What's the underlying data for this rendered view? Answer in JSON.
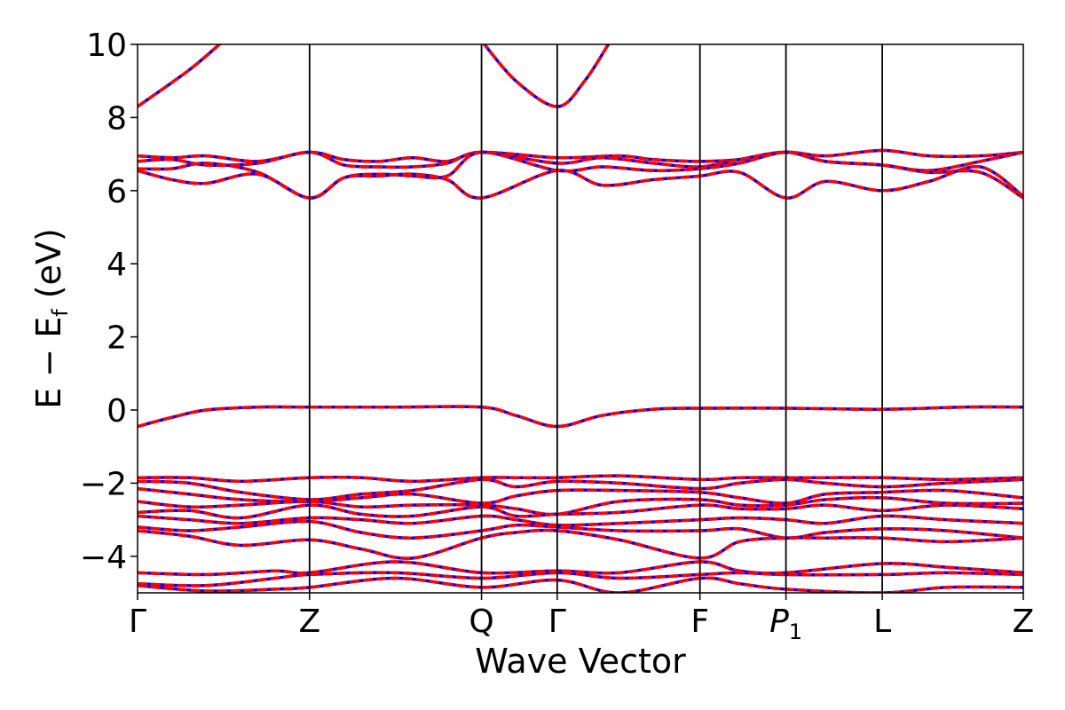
{
  "chart_data": {
    "type": "line",
    "title": "",
    "xlabel": "Wave Vector",
    "ylabel": "E − E_f (eV)",
    "ylabel_parts": {
      "main": "E  −  E",
      "sub": "f",
      "tail": " (eV)"
    },
    "ylim": [
      -5,
      10
    ],
    "yticks": [
      -4,
      -2,
      0,
      2,
      4,
      6,
      8,
      10
    ],
    "ytick_labels": [
      "−4",
      "−2",
      "0",
      "2",
      "4",
      "6",
      "8",
      "10"
    ],
    "kpath": [
      {
        "label": "Γ",
        "pos": 0
      },
      {
        "label": "Z",
        "pos": 1
      },
      {
        "label": "Q",
        "pos": 2
      },
      {
        "label": "Γ",
        "pos": 2.44
      },
      {
        "label": "F",
        "pos": 3.27
      },
      {
        "label": "P",
        "sub": "1",
        "pos": 3.77
      },
      {
        "label": "L",
        "pos": 4.33
      },
      {
        "label": "Z",
        "pos": 5.15
      }
    ],
    "grid": false,
    "series_style": [
      {
        "role": "spin-down",
        "color": "#0000ff",
        "dash": "solid"
      },
      {
        "role": "spin-up",
        "color": "#ff0000",
        "dash": "dashed"
      }
    ],
    "bands": [
      {
        "x": [
          0,
          0.3,
          0.5
        ],
        "y": [
          8.3,
          9.3,
          10.1
        ]
      },
      {
        "x": [
          2.0,
          2.2,
          2.44,
          2.6,
          2.75
        ],
        "y": [
          10.1,
          9.0,
          8.3,
          9.0,
          10.1
        ]
      },
      {
        "x": [
          0,
          0.2,
          0.4,
          0.7,
          1.0,
          1.2,
          1.4,
          1.6,
          1.8,
          2.0,
          2.44,
          2.8,
          3.0,
          3.27,
          3.5,
          3.77,
          4.0,
          4.33,
          4.6,
          4.9,
          5.15
        ],
        "y": [
          6.95,
          6.9,
          6.95,
          6.8,
          7.05,
          6.85,
          6.8,
          6.9,
          6.8,
          7.05,
          6.9,
          6.95,
          6.85,
          6.8,
          6.85,
          7.05,
          6.95,
          7.1,
          6.95,
          6.95,
          7.05
        ]
      },
      {
        "x": [
          0,
          0.2,
          0.4,
          0.7,
          1.0,
          1.2,
          1.4,
          1.6,
          1.8,
          2.0,
          2.44,
          2.7,
          3.0,
          3.27,
          3.5,
          3.77,
          4.0,
          4.33,
          4.6,
          4.9,
          5.15
        ],
        "y": [
          6.8,
          6.85,
          6.7,
          6.75,
          7.05,
          6.7,
          6.65,
          6.65,
          6.75,
          7.05,
          6.75,
          6.9,
          6.75,
          6.65,
          6.85,
          7.05,
          6.8,
          6.7,
          6.55,
          6.8,
          7.05
        ]
      },
      {
        "x": [
          0,
          0.2,
          0.4,
          0.7,
          1.0,
          1.2,
          1.4,
          1.6,
          1.8,
          2.0,
          2.44,
          2.7,
          3.0,
          3.27,
          3.5,
          3.77,
          4.0,
          4.33,
          4.6,
          4.9,
          5.15
        ],
        "y": [
          6.6,
          6.6,
          6.75,
          6.5,
          5.8,
          6.35,
          6.45,
          6.4,
          6.4,
          7.05,
          6.55,
          6.65,
          6.55,
          6.6,
          6.75,
          7.05,
          6.8,
          6.7,
          6.5,
          6.5,
          5.8
        ]
      },
      {
        "x": [
          0,
          0.2,
          0.4,
          0.7,
          1.0,
          1.2,
          1.4,
          1.6,
          1.8,
          2.0,
          2.44,
          2.7,
          3.0,
          3.27,
          3.5,
          3.77,
          4.0,
          4.33,
          4.6,
          4.9,
          5.15
        ],
        "y": [
          6.55,
          6.3,
          6.2,
          6.45,
          5.8,
          6.35,
          6.4,
          6.45,
          6.3,
          5.8,
          6.55,
          6.15,
          6.3,
          6.4,
          6.5,
          5.8,
          6.25,
          6.0,
          6.25,
          6.65,
          5.85
        ]
      },
      {
        "x": [
          0,
          0.2,
          0.4,
          0.7,
          1.0,
          1.5,
          2.0,
          2.2,
          2.44,
          2.7,
          3.0,
          3.27,
          3.77,
          4.33,
          4.8,
          5.15
        ],
        "y": [
          -0.45,
          -0.2,
          0.0,
          0.08,
          0.08,
          0.08,
          0.08,
          -0.15,
          -0.45,
          -0.15,
          0.02,
          0.05,
          0.05,
          0.02,
          0.08,
          0.08
        ]
      },
      {
        "x": [
          0,
          0.3,
          0.6,
          1.0,
          1.3,
          1.6,
          2.0,
          2.2,
          2.44,
          2.8,
          3.27,
          3.5,
          3.77,
          4.0,
          4.33,
          4.7,
          5.15
        ],
        "y": [
          -1.85,
          -1.85,
          -1.95,
          -1.85,
          -1.85,
          -1.95,
          -1.85,
          -1.85,
          -1.85,
          -1.8,
          -1.9,
          -1.85,
          -1.85,
          -1.85,
          -1.85,
          -1.9,
          -1.85
        ]
      },
      {
        "x": [
          0,
          0.3,
          0.6,
          1.0,
          1.3,
          1.6,
          2.0,
          2.2,
          2.44,
          2.8,
          3.27,
          3.5,
          3.77,
          4.0,
          4.33,
          4.7,
          5.15
        ],
        "y": [
          -1.95,
          -2.0,
          -2.25,
          -2.45,
          -2.3,
          -2.2,
          -1.9,
          -2.1,
          -1.95,
          -2.0,
          -2.15,
          -2.0,
          -1.9,
          -2.0,
          -2.1,
          -2.0,
          -1.9
        ]
      },
      {
        "x": [
          0,
          0.3,
          0.6,
          1.0,
          1.3,
          1.6,
          2.0,
          2.2,
          2.44,
          2.8,
          3.27,
          3.5,
          3.77,
          4.0,
          4.33,
          4.7,
          5.15
        ],
        "y": [
          -2.15,
          -2.3,
          -2.45,
          -2.5,
          -2.4,
          -2.3,
          -2.55,
          -2.35,
          -2.2,
          -2.2,
          -2.25,
          -2.4,
          -2.55,
          -2.3,
          -2.25,
          -2.2,
          -2.4
        ]
      },
      {
        "x": [
          0,
          0.3,
          0.6,
          1.0,
          1.3,
          1.6,
          2.0,
          2.2,
          2.44,
          2.8,
          3.27,
          3.5,
          3.77,
          4.0,
          4.33,
          4.7,
          5.15
        ],
        "y": [
          -2.5,
          -2.65,
          -2.6,
          -2.5,
          -2.65,
          -2.6,
          -2.6,
          -2.7,
          -2.85,
          -2.5,
          -2.45,
          -2.6,
          -2.6,
          -2.45,
          -2.4,
          -2.55,
          -2.55
        ]
      },
      {
        "x": [
          0,
          0.3,
          0.6,
          1.0,
          1.3,
          1.6,
          2.0,
          2.2,
          2.44,
          2.8,
          3.27,
          3.5,
          3.77,
          4.0,
          4.33,
          4.7,
          5.15
        ],
        "y": [
          -2.8,
          -2.75,
          -2.95,
          -2.6,
          -2.85,
          -2.9,
          -2.65,
          -2.9,
          -2.85,
          -2.8,
          -2.6,
          -2.7,
          -2.7,
          -2.6,
          -2.75,
          -2.6,
          -2.7
        ]
      },
      {
        "x": [
          0,
          0.3,
          0.6,
          1.0,
          1.3,
          1.6,
          2.0,
          2.2,
          2.44,
          2.8,
          3.27,
          3.5,
          3.77,
          4.0,
          4.33,
          4.7,
          5.15
        ],
        "y": [
          -2.9,
          -3.0,
          -3.1,
          -2.95,
          -3.0,
          -3.1,
          -2.9,
          -3.0,
          -3.15,
          -3.1,
          -3.0,
          -2.95,
          -3.0,
          -3.1,
          -2.9,
          -3.0,
          -3.1
        ]
      },
      {
        "x": [
          0,
          0.3,
          0.6,
          1.0,
          1.3,
          1.6,
          2.0,
          2.2,
          2.44,
          2.8,
          3.27,
          3.5,
          3.77,
          4.0,
          4.33,
          4.7,
          5.15
        ],
        "y": [
          -3.2,
          -3.3,
          -3.2,
          -3.05,
          -3.35,
          -3.5,
          -3.3,
          -3.15,
          -3.2,
          -3.3,
          -3.3,
          -3.25,
          -3.5,
          -3.35,
          -3.25,
          -3.3,
          -3.5
        ]
      },
      {
        "x": [
          0,
          0.3,
          0.6,
          1.0,
          1.3,
          1.6,
          2.0,
          2.2,
          2.44,
          2.8,
          3.27,
          3.5,
          3.77,
          4.0,
          4.33,
          4.7,
          5.15
        ],
        "y": [
          -3.3,
          -3.45,
          -3.7,
          -3.55,
          -3.8,
          -4.05,
          -3.5,
          -3.35,
          -3.3,
          -3.55,
          -4.05,
          -3.6,
          -3.5,
          -3.5,
          -3.5,
          -3.6,
          -3.5
        ]
      },
      {
        "x": [
          0,
          0.4,
          0.8,
          1.0,
          1.5,
          2.0,
          2.44,
          2.8,
          3.27,
          3.5,
          3.77,
          4.33,
          4.7,
          5.15
        ],
        "y": [
          -4.45,
          -4.5,
          -4.4,
          -4.45,
          -4.15,
          -4.45,
          -4.4,
          -4.45,
          -4.15,
          -4.4,
          -4.45,
          -4.2,
          -4.3,
          -4.45
        ]
      },
      {
        "x": [
          0,
          0.4,
          0.8,
          1.0,
          1.5,
          2.0,
          2.44,
          2.8,
          3.27,
          3.5,
          3.77,
          4.33,
          4.7,
          5.15
        ],
        "y": [
          -4.75,
          -4.8,
          -4.6,
          -4.5,
          -4.45,
          -4.6,
          -4.45,
          -4.6,
          -4.5,
          -4.45,
          -4.5,
          -4.5,
          -4.45,
          -4.5
        ]
      },
      {
        "x": [
          0,
          0.4,
          0.8,
          1.0,
          1.5,
          2.0,
          2.44,
          2.8,
          3.27,
          3.5,
          3.77,
          4.33,
          4.7,
          5.15
        ],
        "y": [
          -4.8,
          -4.95,
          -4.9,
          -4.85,
          -4.6,
          -4.85,
          -4.65,
          -5.0,
          -4.6,
          -4.75,
          -4.9,
          -5.0,
          -4.85,
          -4.85
        ]
      }
    ]
  }
}
